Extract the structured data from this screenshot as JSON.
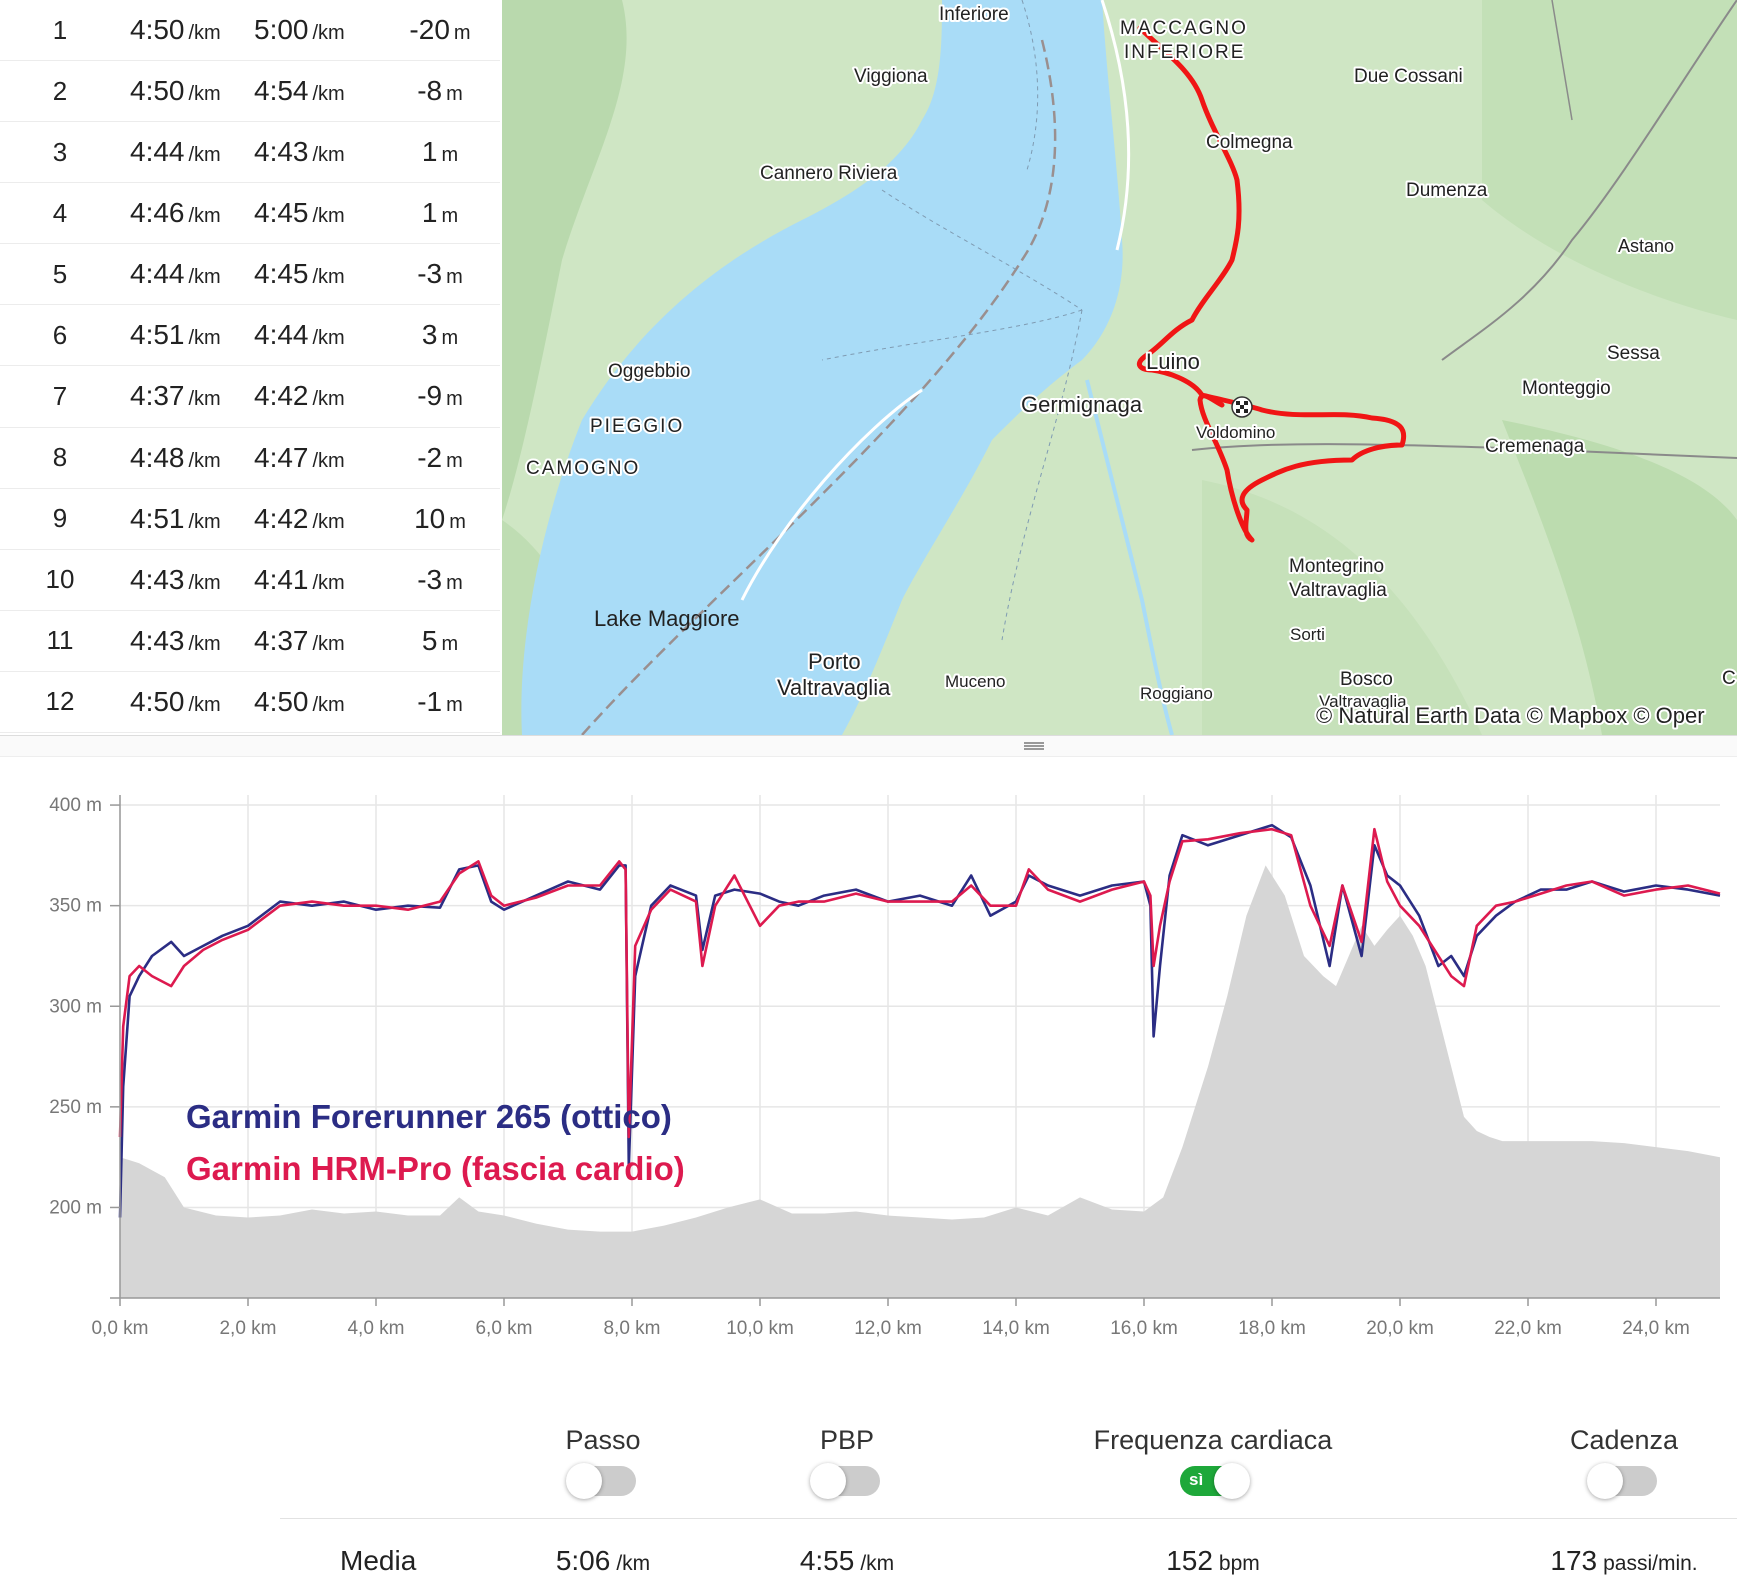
{
  "splits": {
    "rows": [
      {
        "km": "1",
        "pace1": "4:50",
        "pace2": "5:00",
        "elev": "-20"
      },
      {
        "km": "2",
        "pace1": "4:50",
        "pace2": "4:54",
        "elev": "-8"
      },
      {
        "km": "3",
        "pace1": "4:44",
        "pace2": "4:43",
        "elev": "1"
      },
      {
        "km": "4",
        "pace1": "4:46",
        "pace2": "4:45",
        "elev": "1"
      },
      {
        "km": "5",
        "pace1": "4:44",
        "pace2": "4:45",
        "elev": "-3"
      },
      {
        "km": "6",
        "pace1": "4:51",
        "pace2": "4:44",
        "elev": "3"
      },
      {
        "km": "7",
        "pace1": "4:37",
        "pace2": "4:42",
        "elev": "-9"
      },
      {
        "km": "8",
        "pace1": "4:48",
        "pace2": "4:47",
        "elev": "-2"
      },
      {
        "km": "9",
        "pace1": "4:51",
        "pace2": "4:42",
        "elev": "10"
      },
      {
        "km": "10",
        "pace1": "4:43",
        "pace2": "4:41",
        "elev": "-3"
      },
      {
        "km": "11",
        "pace1": "4:43",
        "pace2": "4:37",
        "elev": "5"
      },
      {
        "km": "12",
        "pace1": "4:50",
        "pace2": "4:50",
        "elev": "-1"
      }
    ],
    "pace_unit": "/km",
    "elev_unit": "m"
  },
  "map": {
    "labels": {
      "inferiore": "Inferiore",
      "maccagno": "MACCAGNO",
      "inferiore2": "INFERIORE",
      "viggiona": "Viggiona",
      "due_cossani": "Due Cossani",
      "colmegna": "Colmegna",
      "cannero": "Cannero Riviera",
      "dumenza": "Dumenza",
      "astano": "Astano",
      "sessa": "Sessa",
      "oggebbio": "Oggebbio",
      "luino": "Luino",
      "germignaga": "Germignaga",
      "monteggio": "Monteggio",
      "voldomino": "Voldomino",
      "pieggio": "PIEGGIO",
      "cremenaga": "Cremenaga",
      "camogno": "CAMOGNO",
      "montegrino": "Montegrino",
      "valtravaglia": "Valtravaglia",
      "lake": "Lake Maggiore",
      "sorti": "Sorti",
      "porto": "Porto",
      "porto2": "Valtravaglia",
      "muceno": "Muceno",
      "roggiano": "Roggiano",
      "bosco": "Bosco",
      "bosco2": "Valtravaglia",
      "edge_c": "C"
    },
    "attribution": "© Natural Earth Data © Mapbox © Oper",
    "colors": {
      "water": "#a9dcf7",
      "land": "#cfe6c4",
      "route": "#f01515"
    }
  },
  "chart_data": {
    "type": "line",
    "title": "",
    "xlabel": "",
    "ylabel": "",
    "xlim": [
      0,
      25
    ],
    "ylim": [
      155,
      405
    ],
    "x_ticks": [
      "0,0 km",
      "2,0 km",
      "4,0 km",
      "6,0 km",
      "8,0 km",
      "10,0 km",
      "12,0 km",
      "14,0 km",
      "16,0 km",
      "18,0 km",
      "20,0 km",
      "22,0 km",
      "24,0 km"
    ],
    "y_ticks": [
      "400 m",
      "350 m",
      "300 m",
      "250 m",
      "200 m"
    ],
    "y_tick_values": [
      400,
      350,
      300,
      250,
      200
    ],
    "elevation_area": {
      "x": [
        0,
        0.3,
        0.7,
        1,
        1.5,
        2,
        2.5,
        3,
        3.5,
        4,
        4.5,
        5,
        5.3,
        5.6,
        6,
        6.5,
        7,
        7.5,
        8,
        8.5,
        9,
        9.5,
        10,
        10.5,
        11,
        11.5,
        12,
        12.5,
        13,
        13.5,
        14,
        14.5,
        15,
        15.5,
        16,
        16.3,
        16.6,
        17,
        17.3,
        17.6,
        17.9,
        18.2,
        18.5,
        18.8,
        19,
        19.2,
        19.4,
        19.6,
        19.8,
        20,
        20.2,
        20.4,
        20.6,
        20.8,
        21,
        21.2,
        21.4,
        21.6,
        22,
        22.5,
        23,
        23.5,
        24,
        24.5,
        25
      ],
      "values": [
        225,
        222,
        215,
        200,
        196,
        195,
        196,
        199,
        197,
        198,
        196,
        196,
        205,
        198,
        196,
        192,
        189,
        188,
        188,
        191,
        195,
        200,
        204,
        197,
        197,
        198,
        196,
        195,
        194,
        195,
        200,
        196,
        205,
        199,
        198,
        205,
        230,
        270,
        305,
        345,
        370,
        355,
        325,
        315,
        310,
        325,
        340,
        330,
        338,
        345,
        335,
        320,
        295,
        270,
        245,
        238,
        235,
        233,
        233,
        233,
        233,
        232,
        230,
        228,
        225
      ]
    },
    "series": [
      {
        "name": "Garmin Forerunner 265 (ottico)",
        "color": "#2b2d84",
        "x": [
          0,
          0.05,
          0.15,
          0.3,
          0.5,
          0.8,
          1,
          1.3,
          1.6,
          2,
          2.5,
          3,
          3.5,
          4,
          4.5,
          5,
          5.3,
          5.6,
          5.8,
          6,
          6.5,
          7,
          7.5,
          7.8,
          7.9,
          7.95,
          8.05,
          8.3,
          8.6,
          9,
          9.1,
          9.3,
          9.6,
          10,
          10.3,
          10.6,
          11,
          11.5,
          12,
          12.5,
          13,
          13.3,
          13.6,
          14,
          14.2,
          14.5,
          15,
          15.5,
          16,
          16.1,
          16.15,
          16.25,
          16.4,
          16.6,
          17,
          17.5,
          18,
          18.3,
          18.6,
          18.9,
          19.1,
          19.4,
          19.6,
          19.8,
          20,
          20.3,
          20.6,
          20.8,
          21,
          21.2,
          21.5,
          21.8,
          22.2,
          22.6,
          23,
          23.5,
          24,
          24.5,
          25
        ],
        "values": [
          195,
          260,
          305,
          315,
          325,
          332,
          325,
          330,
          335,
          340,
          352,
          350,
          352,
          348,
          350,
          349,
          368,
          370,
          352,
          348,
          355,
          362,
          358,
          370,
          370,
          220,
          315,
          350,
          360,
          355,
          328,
          355,
          358,
          356,
          352,
          350,
          355,
          358,
          352,
          355,
          350,
          365,
          345,
          352,
          365,
          360,
          355,
          360,
          362,
          350,
          285,
          320,
          365,
          385,
          380,
          385,
          390,
          384,
          360,
          320,
          360,
          325,
          380,
          365,
          360,
          345,
          320,
          325,
          315,
          335,
          345,
          352,
          358,
          358,
          362,
          357,
          360,
          358,
          355
        ]
      },
      {
        "name": "Garmin HRM-Pro (fascia cardio)",
        "color": "#dd1a4f",
        "x": [
          0,
          0.05,
          0.15,
          0.3,
          0.5,
          0.8,
          1,
          1.3,
          1.6,
          2,
          2.5,
          3,
          3.5,
          4,
          4.5,
          5,
          5.3,
          5.6,
          5.8,
          6,
          6.5,
          7,
          7.5,
          7.8,
          7.9,
          7.95,
          8.05,
          8.3,
          8.6,
          9,
          9.1,
          9.3,
          9.6,
          10,
          10.3,
          10.6,
          11,
          11.5,
          12,
          12.5,
          13,
          13.3,
          13.6,
          14,
          14.2,
          14.5,
          15,
          15.5,
          16,
          16.1,
          16.15,
          16.25,
          16.4,
          16.6,
          17,
          17.5,
          18,
          18.3,
          18.6,
          18.9,
          19.1,
          19.4,
          19.6,
          19.8,
          20,
          20.3,
          20.6,
          20.8,
          21,
          21.2,
          21.5,
          21.8,
          22.2,
          22.6,
          23,
          23.5,
          24,
          24.5,
          25
        ],
        "values": [
          235,
          290,
          315,
          320,
          315,
          310,
          320,
          328,
          333,
          338,
          350,
          352,
          350,
          350,
          348,
          352,
          366,
          372,
          355,
          350,
          354,
          360,
          360,
          372,
          368,
          235,
          330,
          348,
          358,
          352,
          320,
          350,
          365,
          340,
          350,
          352,
          352,
          356,
          352,
          352,
          352,
          360,
          350,
          350,
          368,
          358,
          352,
          358,
          362,
          355,
          320,
          340,
          362,
          382,
          383,
          386,
          388,
          385,
          350,
          330,
          360,
          332,
          388,
          362,
          350,
          340,
          325,
          315,
          310,
          340,
          350,
          352,
          356,
          360,
          362,
          355,
          358,
          360,
          356
        ]
      }
    ]
  },
  "legend": {
    "line1": "Garmin Forerunner 265 (ottico)",
    "line2": "Garmin HRM-Pro (fascia cardio)"
  },
  "stats": {
    "cols": [
      {
        "label": "Passo",
        "toggle": false,
        "avg": "5:06",
        "unit": "/km"
      },
      {
        "label": "PBP",
        "toggle": false,
        "avg": "4:55",
        "unit": "/km"
      },
      {
        "label": "Frequenza cardiaca",
        "toggle": true,
        "toggle_text": "sì",
        "avg": "152",
        "unit": "bpm"
      },
      {
        "label": "Cadenza",
        "toggle": false,
        "avg": "173",
        "unit": "passi/min."
      }
    ],
    "avg_label": "Media"
  }
}
